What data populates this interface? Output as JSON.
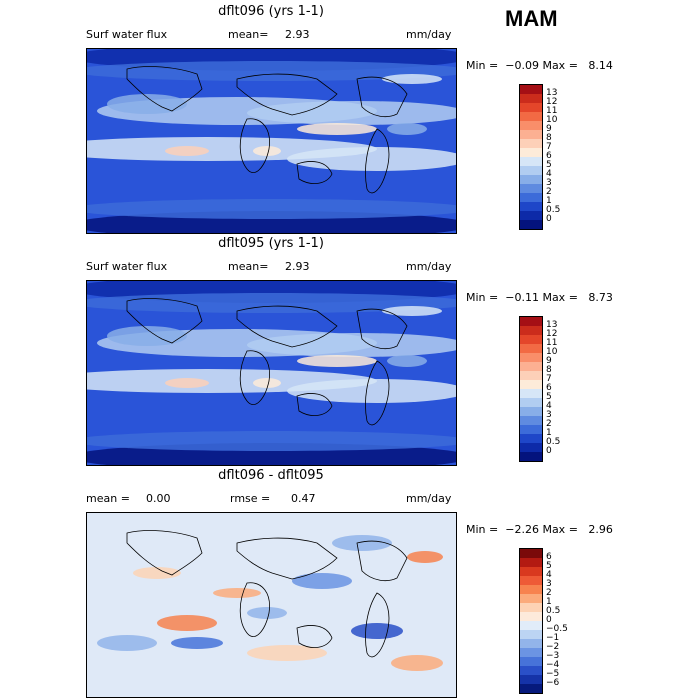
{
  "season": "MAM",
  "panels": [
    {
      "title": "dflt096 (yrs 1-1)",
      "left_label": "Surf water flux",
      "stat1_label": "mean=",
      "stat1_value": "2.93",
      "stat2_label": "",
      "stat2_value": "",
      "units": "mm/day",
      "min_label": "Min =",
      "min_value": "−0.09",
      "max_label": "Max =",
      "max_value": "8.14",
      "colorbar_labels": [
        "13",
        "12",
        "11",
        "10",
        "9",
        "8",
        "7",
        "6",
        "5",
        "4",
        "3",
        "2",
        "1",
        "0.5",
        "0"
      ],
      "colorbar_colors": [
        "#a50f15",
        "#cb2c1c",
        "#e4462a",
        "#f26a44",
        "#f98e6a",
        "#fcb092",
        "#fdd0b8",
        "#fdebd9",
        "#d6e6f7",
        "#b1cdf1",
        "#88aee8",
        "#5f8be0",
        "#3c6bd9",
        "#1e46c8",
        "#0d2aa8",
        "#04137d"
      ],
      "map_fill": "#2a54d8"
    },
    {
      "title": "dflt095 (yrs 1-1)",
      "left_label": "Surf water flux",
      "stat1_label": "mean=",
      "stat1_value": "2.93",
      "stat2_label": "",
      "stat2_value": "",
      "units": "mm/day",
      "min_label": "Min =",
      "min_value": "−0.11",
      "max_label": "Max =",
      "max_value": "8.73",
      "colorbar_labels": [
        "13",
        "12",
        "11",
        "10",
        "9",
        "8",
        "7",
        "6",
        "5",
        "4",
        "3",
        "2",
        "1",
        "0.5",
        "0"
      ],
      "colorbar_colors": [
        "#a50f15",
        "#cb2c1c",
        "#e4462a",
        "#f26a44",
        "#f98e6a",
        "#fcb092",
        "#fdd0b8",
        "#fdebd9",
        "#d6e6f7",
        "#b1cdf1",
        "#88aee8",
        "#5f8be0",
        "#3c6bd9",
        "#1e46c8",
        "#0d2aa8",
        "#04137d"
      ],
      "map_fill": "#2a54d8"
    },
    {
      "title": "dflt096 - dflt095",
      "left_label": "",
      "stat1_label": "mean =",
      "stat1_value": "0.00",
      "stat2_label": "rmse =",
      "stat2_value": "0.47",
      "units": "mm/day",
      "min_label": "Min =",
      "min_value": "−2.26",
      "max_label": "Max =",
      "max_value": "2.96",
      "colorbar_labels": [
        "6",
        "5",
        "4",
        "3",
        "2",
        "1",
        "0.5",
        "0",
        "−0.5",
        "−1",
        "−2",
        "−3",
        "−4",
        "−5",
        "−6"
      ],
      "colorbar_colors": [
        "#7a0a0a",
        "#b31a12",
        "#d9391f",
        "#ee5a36",
        "#f7834f",
        "#fbab7c",
        "#fdd3b5",
        "#fdeadb",
        "#e1ecf9",
        "#bcd4f3",
        "#92b4ea",
        "#6b94e3",
        "#4773d9",
        "#2a50c8",
        "#1533a8",
        "#061a7c"
      ],
      "map_fill": "#dfe9f7"
    }
  ],
  "chart_data": [
    {
      "type": "heatmap",
      "title": "dflt096 (yrs 1-1)",
      "field": "Surf water flux",
      "units": "mm/day",
      "mean": 2.93,
      "min": -0.09,
      "max": 8.14,
      "levels": [
        0,
        0.5,
        1,
        2,
        3,
        4,
        5,
        6,
        7,
        8,
        9,
        10,
        11,
        12,
        13
      ]
    },
    {
      "type": "heatmap",
      "title": "dflt095 (yrs 1-1)",
      "field": "Surf water flux",
      "units": "mm/day",
      "mean": 2.93,
      "min": -0.11,
      "max": 8.73,
      "levels": [
        0,
        0.5,
        1,
        2,
        3,
        4,
        5,
        6,
        7,
        8,
        9,
        10,
        11,
        12,
        13
      ]
    },
    {
      "type": "heatmap",
      "title": "dflt096 - dflt095",
      "units": "mm/day",
      "mean": 0.0,
      "rmse": 0.47,
      "min": -2.26,
      "max": 2.96,
      "levels": [
        -6,
        -5,
        -4,
        -3,
        -2,
        -1,
        -0.5,
        0,
        0.5,
        1,
        2,
        3,
        4,
        5,
        6
      ]
    }
  ]
}
